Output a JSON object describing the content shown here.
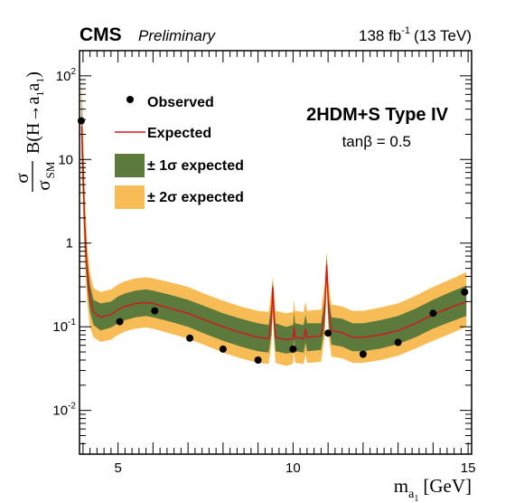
{
  "header": {
    "experiment": "CMS",
    "status": "Preliminary",
    "lumi_value": "138 fb",
    "lumi_exp": "-1",
    "energy": "(13 TeV)"
  },
  "annotation": {
    "model": "2HDM+S Type IV",
    "param": "tanβ = 0.5"
  },
  "legend": {
    "observed": "Observed",
    "expected": "Expected",
    "band1": "± 1σ expected",
    "band2": "± 2σ expected"
  },
  "axes": {
    "xlabel_main": "m",
    "xlabel_sub1": "a",
    "xlabel_sub2": "1",
    "xlabel_unit": "[GeV]",
    "ylabel_num": "σ",
    "ylabel_den": "σ",
    "ylabel_den_sub": "SM",
    "ylabel_br": "B(H→a",
    "ylabel_br_sub1": "1",
    "ylabel_br_mid": "a",
    "ylabel_br_sub2": "1",
    "ylabel_br_end": ")"
  },
  "colors": {
    "band1": "#5d7a3d",
    "band2": "#f7bc55",
    "expected": "#d4161c",
    "observed": "#000000"
  },
  "chart_data": {
    "type": "line",
    "x_scale": "linear",
    "y_scale": "log",
    "xlim": [
      3.9,
      15.1
    ],
    "ylim": [
      0.003,
      200
    ],
    "x_ticks": [
      {
        "v": 5,
        "label": "5"
      },
      {
        "v": 10,
        "label": "10"
      },
      {
        "v": 15,
        "label": "15"
      }
    ],
    "y_ticks": [
      {
        "v": 0.01,
        "base": "10",
        "exp": "-2"
      },
      {
        "v": 0.1,
        "base": "10",
        "exp": "-1"
      },
      {
        "v": 1,
        "base": "1",
        "exp": ""
      },
      {
        "v": 10,
        "base": "10",
        "exp": ""
      },
      {
        "v": 100,
        "base": "10",
        "exp": "2"
      }
    ],
    "expected": [
      [
        3.96,
        25
      ],
      [
        4.0,
        8
      ],
      [
        4.05,
        1.5
      ],
      [
        4.12,
        0.45
      ],
      [
        4.2,
        0.22
      ],
      [
        4.3,
        0.15
      ],
      [
        4.5,
        0.13
      ],
      [
        4.8,
        0.14
      ],
      [
        5.0,
        0.16
      ],
      [
        5.2,
        0.175
      ],
      [
        5.5,
        0.19
      ],
      [
        5.8,
        0.195
      ],
      [
        6.0,
        0.19
      ],
      [
        6.5,
        0.165
      ],
      [
        7.0,
        0.145
      ],
      [
        7.5,
        0.12
      ],
      [
        8.0,
        0.1
      ],
      [
        8.5,
        0.085
      ],
      [
        9.0,
        0.075
      ],
      [
        9.3,
        0.072
      ],
      [
        9.38,
        0.12
      ],
      [
        9.42,
        0.3
      ],
      [
        9.46,
        0.12
      ],
      [
        9.5,
        0.075
      ],
      [
        9.8,
        0.07
      ],
      [
        10.0,
        0.072
      ],
      [
        10.03,
        0.1
      ],
      [
        10.06,
        0.075
      ],
      [
        10.3,
        0.072
      ],
      [
        10.36,
        0.095
      ],
      [
        10.4,
        0.075
      ],
      [
        10.8,
        0.078
      ],
      [
        10.9,
        0.15
      ],
      [
        10.96,
        0.55
      ],
      [
        11.02,
        0.15
      ],
      [
        11.1,
        0.09
      ],
      [
        11.4,
        0.085
      ],
      [
        11.7,
        0.075
      ],
      [
        12.0,
        0.075
      ],
      [
        12.5,
        0.08
      ],
      [
        13.0,
        0.09
      ],
      [
        13.5,
        0.11
      ],
      [
        14.0,
        0.14
      ],
      [
        14.5,
        0.17
      ],
      [
        14.95,
        0.2
      ]
    ],
    "band1_upper": [
      [
        3.96,
        60
      ],
      [
        4.0,
        15
      ],
      [
        4.05,
        2.5
      ],
      [
        4.12,
        0.65
      ],
      [
        4.2,
        0.32
      ],
      [
        4.3,
        0.21
      ],
      [
        4.5,
        0.19
      ],
      [
        4.8,
        0.2
      ],
      [
        5.0,
        0.23
      ],
      [
        5.2,
        0.25
      ],
      [
        5.5,
        0.27
      ],
      [
        5.8,
        0.28
      ],
      [
        6.0,
        0.27
      ],
      [
        6.5,
        0.24
      ],
      [
        7.0,
        0.21
      ],
      [
        7.5,
        0.175
      ],
      [
        8.0,
        0.145
      ],
      [
        8.5,
        0.125
      ],
      [
        9.0,
        0.11
      ],
      [
        9.3,
        0.105
      ],
      [
        9.38,
        0.18
      ],
      [
        9.42,
        0.35
      ],
      [
        9.46,
        0.18
      ],
      [
        9.5,
        0.11
      ],
      [
        9.8,
        0.1
      ],
      [
        10.0,
        0.105
      ],
      [
        10.03,
        0.15
      ],
      [
        10.06,
        0.11
      ],
      [
        10.3,
        0.105
      ],
      [
        10.36,
        0.14
      ],
      [
        10.4,
        0.11
      ],
      [
        10.8,
        0.11
      ],
      [
        10.9,
        0.22
      ],
      [
        10.96,
        0.7
      ],
      [
        11.02,
        0.22
      ],
      [
        11.1,
        0.13
      ],
      [
        11.4,
        0.125
      ],
      [
        11.7,
        0.11
      ],
      [
        12.0,
        0.11
      ],
      [
        12.5,
        0.12
      ],
      [
        13.0,
        0.135
      ],
      [
        13.5,
        0.165
      ],
      [
        14.0,
        0.21
      ],
      [
        14.5,
        0.26
      ],
      [
        14.95,
        0.31
      ]
    ],
    "band1_lower": [
      [
        3.96,
        12
      ],
      [
        4.0,
        4
      ],
      [
        4.05,
        0.9
      ],
      [
        4.12,
        0.3
      ],
      [
        4.2,
        0.15
      ],
      [
        4.3,
        0.105
      ],
      [
        4.5,
        0.09
      ],
      [
        4.8,
        0.098
      ],
      [
        5.0,
        0.11
      ],
      [
        5.2,
        0.12
      ],
      [
        5.5,
        0.13
      ],
      [
        5.8,
        0.135
      ],
      [
        6.0,
        0.13
      ],
      [
        6.5,
        0.115
      ],
      [
        7.0,
        0.1
      ],
      [
        7.5,
        0.082
      ],
      [
        8.0,
        0.068
      ],
      [
        8.5,
        0.058
      ],
      [
        9.0,
        0.051
      ],
      [
        9.3,
        0.049
      ],
      [
        9.38,
        0.08
      ],
      [
        9.42,
        0.2
      ],
      [
        9.46,
        0.08
      ],
      [
        9.5,
        0.051
      ],
      [
        9.8,
        0.048
      ],
      [
        10.0,
        0.049
      ],
      [
        10.03,
        0.07
      ],
      [
        10.06,
        0.051
      ],
      [
        10.3,
        0.049
      ],
      [
        10.36,
        0.065
      ],
      [
        10.4,
        0.051
      ],
      [
        10.8,
        0.053
      ],
      [
        10.9,
        0.1
      ],
      [
        10.96,
        0.4
      ],
      [
        11.02,
        0.1
      ],
      [
        11.1,
        0.061
      ],
      [
        11.4,
        0.058
      ],
      [
        11.7,
        0.051
      ],
      [
        12.0,
        0.051
      ],
      [
        12.5,
        0.055
      ],
      [
        13.0,
        0.062
      ],
      [
        13.5,
        0.075
      ],
      [
        14.0,
        0.095
      ],
      [
        14.5,
        0.115
      ],
      [
        14.95,
        0.135
      ]
    ],
    "band2_upper": [
      [
        3.96,
        110
      ],
      [
        4.0,
        25
      ],
      [
        4.05,
        4
      ],
      [
        4.12,
        0.95
      ],
      [
        4.2,
        0.45
      ],
      [
        4.3,
        0.29
      ],
      [
        4.5,
        0.26
      ],
      [
        4.8,
        0.28
      ],
      [
        5.0,
        0.32
      ],
      [
        5.2,
        0.35
      ],
      [
        5.5,
        0.38
      ],
      [
        5.8,
        0.39
      ],
      [
        6.0,
        0.38
      ],
      [
        6.5,
        0.34
      ],
      [
        7.0,
        0.3
      ],
      [
        7.5,
        0.245
      ],
      [
        8.0,
        0.205
      ],
      [
        8.5,
        0.175
      ],
      [
        9.0,
        0.155
      ],
      [
        9.3,
        0.15
      ],
      [
        9.38,
        0.26
      ],
      [
        9.42,
        0.4
      ],
      [
        9.46,
        0.26
      ],
      [
        9.5,
        0.155
      ],
      [
        9.8,
        0.145
      ],
      [
        10.0,
        0.15
      ],
      [
        10.03,
        0.21
      ],
      [
        10.06,
        0.155
      ],
      [
        10.3,
        0.15
      ],
      [
        10.36,
        0.2
      ],
      [
        10.4,
        0.155
      ],
      [
        10.8,
        0.16
      ],
      [
        10.9,
        0.32
      ],
      [
        10.96,
        0.8
      ],
      [
        11.02,
        0.32
      ],
      [
        11.1,
        0.185
      ],
      [
        11.4,
        0.175
      ],
      [
        11.7,
        0.155
      ],
      [
        12.0,
        0.155
      ],
      [
        12.5,
        0.17
      ],
      [
        13.0,
        0.19
      ],
      [
        13.5,
        0.235
      ],
      [
        14.0,
        0.3
      ],
      [
        14.5,
        0.37
      ],
      [
        14.95,
        0.45
      ]
    ],
    "band2_lower": [
      [
        3.96,
        7
      ],
      [
        4.0,
        2.5
      ],
      [
        4.05,
        0.6
      ],
      [
        4.12,
        0.2
      ],
      [
        4.2,
        0.1
      ],
      [
        4.3,
        0.075
      ],
      [
        4.5,
        0.066
      ],
      [
        4.8,
        0.07
      ],
      [
        5.0,
        0.08
      ],
      [
        5.2,
        0.088
      ],
      [
        5.5,
        0.095
      ],
      [
        5.8,
        0.098
      ],
      [
        6.0,
        0.095
      ],
      [
        6.5,
        0.083
      ],
      [
        7.0,
        0.072
      ],
      [
        7.5,
        0.06
      ],
      [
        8.0,
        0.049
      ],
      [
        8.5,
        0.042
      ],
      [
        9.0,
        0.037
      ],
      [
        9.3,
        0.036
      ],
      [
        9.38,
        0.06
      ],
      [
        9.42,
        0.15
      ],
      [
        9.46,
        0.06
      ],
      [
        9.5,
        0.037
      ],
      [
        9.8,
        0.034
      ],
      [
        10.0,
        0.036
      ],
      [
        10.03,
        0.05
      ],
      [
        10.06,
        0.037
      ],
      [
        10.3,
        0.036
      ],
      [
        10.36,
        0.047
      ],
      [
        10.4,
        0.037
      ],
      [
        10.8,
        0.038
      ],
      [
        10.9,
        0.075
      ],
      [
        10.96,
        0.3
      ],
      [
        11.02,
        0.075
      ],
      [
        11.1,
        0.044
      ],
      [
        11.4,
        0.042
      ],
      [
        11.7,
        0.037
      ],
      [
        12.0,
        0.037
      ],
      [
        12.5,
        0.04
      ],
      [
        13.0,
        0.045
      ],
      [
        13.5,
        0.055
      ],
      [
        14.0,
        0.068
      ],
      [
        14.5,
        0.083
      ],
      [
        14.95,
        0.1
      ]
    ],
    "observed": [
      [
        3.95,
        29
      ],
      [
        5.05,
        0.115
      ],
      [
        6.05,
        0.155
      ],
      [
        7.05,
        0.073
      ],
      [
        8.0,
        0.054
      ],
      [
        9.0,
        0.04
      ],
      [
        10.0,
        0.054
      ],
      [
        11.0,
        0.084
      ],
      [
        12.0,
        0.047
      ],
      [
        13.0,
        0.065
      ],
      [
        14.0,
        0.145
      ],
      [
        14.9,
        0.26
      ]
    ]
  }
}
